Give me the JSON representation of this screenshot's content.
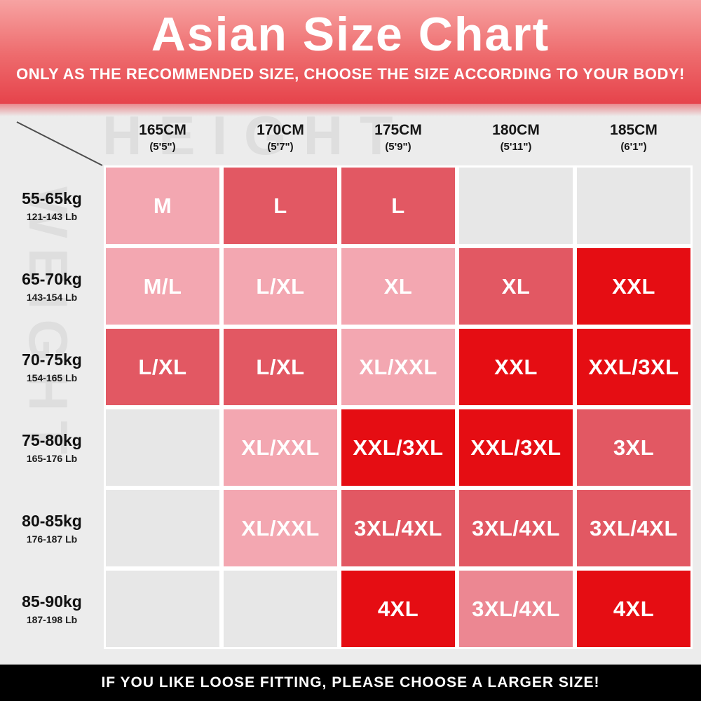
{
  "header": {
    "title": "Asian Size Chart",
    "subtitle": "ONLY AS THE RECOMMENDED SIZE, CHOOSE THE SIZE ACCORDING TO YOUR BODY!"
  },
  "watermarks": {
    "top": "HEIGHT",
    "left": "WEIGHT"
  },
  "footer": {
    "note": "IF YOU LIKE LOOSE FITTING, PLEASE CHOOSE A LARGER SIZE!"
  },
  "colors": {
    "hero_top": "#F7A3A2",
    "hero_mid": "#EE6C6E",
    "hero_bottom": "#E6434B",
    "table_bg": "#ECECEC",
    "footer_bg": "#000000",
    "tone_light": "#F3A7B1",
    "tone_mid": "#E25863",
    "tone_rose": "#EC8792",
    "tone_deep": "#E50D13",
    "tone_empty": "#E7E7E7"
  },
  "chart_data": {
    "type": "table",
    "title": "Asian Size Chart",
    "height_columns": [
      {
        "cm": "165CM",
        "ft": "(5'5\")"
      },
      {
        "cm": "170CM",
        "ft": "(5'7\")"
      },
      {
        "cm": "175CM",
        "ft": "(5'9\")"
      },
      {
        "cm": "180CM",
        "ft": "(5'11\")"
      },
      {
        "cm": "185CM",
        "ft": "(6'1\")"
      }
    ],
    "weight_rows": [
      {
        "kg": "55-65kg",
        "lb": "121-143 Lb",
        "sizes": [
          {
            "label": "M",
            "tone": "light"
          },
          {
            "label": "L",
            "tone": "mid"
          },
          {
            "label": "L",
            "tone": "mid"
          },
          {
            "label": "",
            "tone": "empty"
          },
          {
            "label": "",
            "tone": "empty"
          }
        ]
      },
      {
        "kg": "65-70kg",
        "lb": "143-154 Lb",
        "sizes": [
          {
            "label": "M/L",
            "tone": "light"
          },
          {
            "label": "L/XL",
            "tone": "light"
          },
          {
            "label": "XL",
            "tone": "light"
          },
          {
            "label": "XL",
            "tone": "mid"
          },
          {
            "label": "XXL",
            "tone": "deep"
          }
        ]
      },
      {
        "kg": "70-75kg",
        "lb": "154-165 Lb",
        "sizes": [
          {
            "label": "L/XL",
            "tone": "mid"
          },
          {
            "label": "L/XL",
            "tone": "mid"
          },
          {
            "label": "XL/XXL",
            "tone": "light"
          },
          {
            "label": "XXL",
            "tone": "deep"
          },
          {
            "label": "XXL/3XL",
            "tone": "deep"
          }
        ]
      },
      {
        "kg": "75-80kg",
        "lb": "165-176 Lb",
        "sizes": [
          {
            "label": "",
            "tone": "empty"
          },
          {
            "label": "XL/XXL",
            "tone": "light"
          },
          {
            "label": "XXL/3XL",
            "tone": "deep"
          },
          {
            "label": "XXL/3XL",
            "tone": "deep"
          },
          {
            "label": "3XL",
            "tone": "mid"
          }
        ]
      },
      {
        "kg": "80-85kg",
        "lb": "176-187 Lb",
        "sizes": [
          {
            "label": "",
            "tone": "empty"
          },
          {
            "label": "XL/XXL",
            "tone": "light"
          },
          {
            "label": "3XL/4XL",
            "tone": "mid"
          },
          {
            "label": "3XL/4XL",
            "tone": "mid"
          },
          {
            "label": "3XL/4XL",
            "tone": "mid"
          }
        ]
      },
      {
        "kg": "85-90kg",
        "lb": "187-198 Lb",
        "sizes": [
          {
            "label": "",
            "tone": "empty"
          },
          {
            "label": "",
            "tone": "empty"
          },
          {
            "label": "4XL",
            "tone": "deep"
          },
          {
            "label": "3XL/4XL",
            "tone": "rose"
          },
          {
            "label": "4XL",
            "tone": "deep"
          }
        ]
      }
    ]
  }
}
